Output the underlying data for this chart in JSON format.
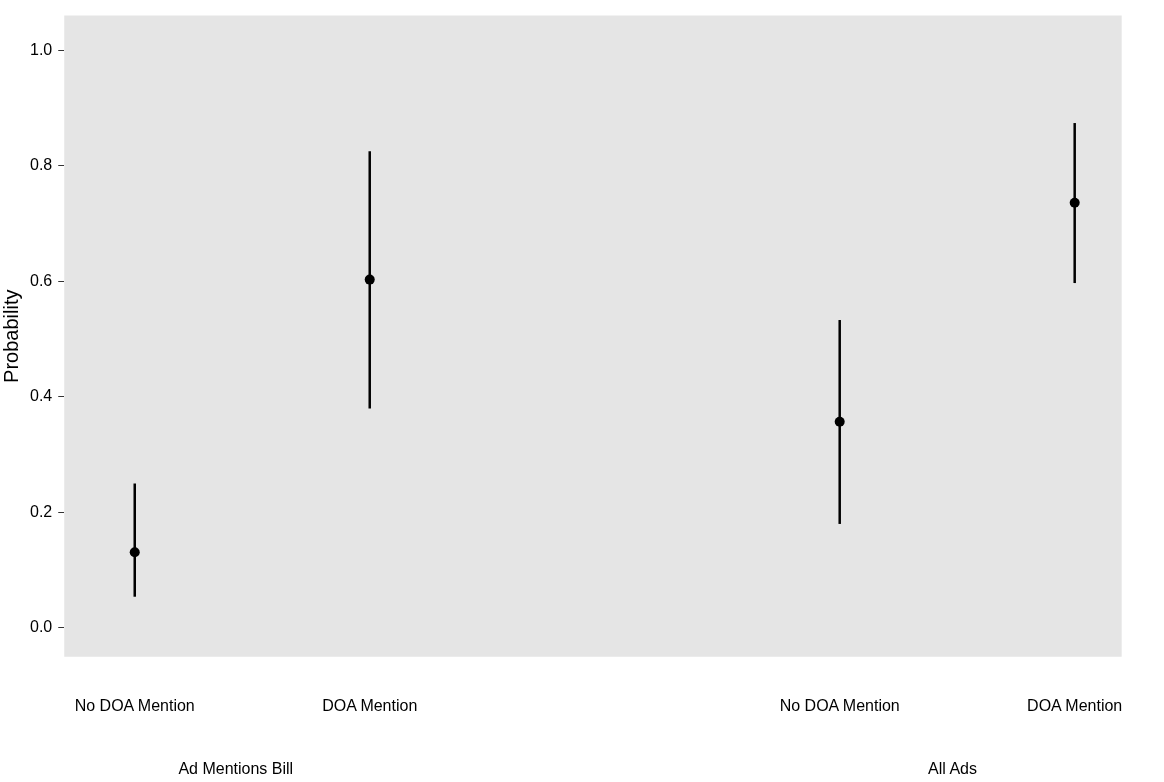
{
  "chart_data": {
    "type": "scatter",
    "ylabel": "Probability",
    "categories": [
      "No DOA Mention",
      "DOA Mention",
      null,
      "No DOA Mention",
      "DOA Mention"
    ],
    "values": [
      0.131,
      0.603,
      null,
      0.357,
      0.736
    ],
    "errors": [
      [
        0.054,
        0.25
      ],
      [
        0.38,
        0.825
      ],
      null,
      [
        0.18,
        0.533
      ],
      [
        0.597,
        0.874
      ]
    ],
    "color": "#000000",
    "marker": "circle",
    "ylim": [
      -0.05,
      1.06
    ],
    "yticks": [
      {
        "value": 0,
        "label": "0.0"
      },
      {
        "value": 0.2,
        "label": "0.2"
      },
      {
        "value": 0.4,
        "label": "0.4"
      },
      {
        "value": 0.6,
        "label": "0.6"
      },
      {
        "value": 0.8,
        "label": "0.8"
      },
      {
        "value": 1,
        "label": "1.0"
      }
    ],
    "grid": false,
    "legend": false,
    "annotations": [
      "Ad Mentions Bill",
      "All Ads"
    ]
  }
}
